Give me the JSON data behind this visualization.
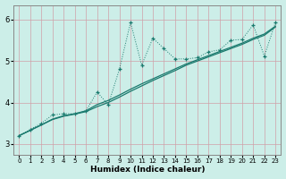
{
  "xlabel": "Humidex (Indice chaleur)",
  "background_color": "#cceee8",
  "line_color": "#1a7a6e",
  "xlim": [
    -0.5,
    23.5
  ],
  "ylim": [
    2.75,
    6.35
  ],
  "yticks": [
    3,
    4,
    5,
    6
  ],
  "xticks": [
    0,
    1,
    2,
    3,
    4,
    5,
    6,
    7,
    8,
    9,
    10,
    11,
    12,
    13,
    14,
    15,
    16,
    17,
    18,
    19,
    20,
    21,
    22,
    23
  ],
  "series_zigzag_x": [
    0,
    1,
    2,
    3,
    4,
    5,
    6,
    7,
    8,
    9,
    10,
    11,
    12,
    13,
    14,
    15,
    16,
    17,
    18,
    19,
    20,
    21,
    22,
    23
  ],
  "series_zigzag_y": [
    3.2,
    3.35,
    3.5,
    3.7,
    3.73,
    3.73,
    3.8,
    4.25,
    3.95,
    4.8,
    5.93,
    4.9,
    5.55,
    5.3,
    5.05,
    5.05,
    5.08,
    5.22,
    5.27,
    5.5,
    5.52,
    5.87,
    5.12,
    5.93
  ],
  "series_trend1_x": [
    0,
    1,
    2,
    3,
    4,
    5,
    6,
    7,
    8,
    9,
    10,
    11,
    12,
    13,
    14,
    15,
    16,
    17,
    18,
    19,
    20,
    21,
    22,
    23
  ],
  "series_trend1_y": [
    3.2,
    3.33,
    3.46,
    3.59,
    3.67,
    3.72,
    3.78,
    3.9,
    4.0,
    4.13,
    4.27,
    4.4,
    4.53,
    4.65,
    4.77,
    4.9,
    5.0,
    5.1,
    5.2,
    5.3,
    5.4,
    5.52,
    5.62,
    5.82
  ],
  "series_trend2_x": [
    0,
    1,
    2,
    3,
    4,
    5,
    6,
    7,
    8,
    9,
    10,
    11,
    12,
    13,
    14,
    15,
    16,
    17,
    18,
    19,
    20,
    21,
    22,
    23
  ],
  "series_trend2_y": [
    3.2,
    3.33,
    3.46,
    3.6,
    3.68,
    3.73,
    3.8,
    3.95,
    4.05,
    4.18,
    4.32,
    4.45,
    4.57,
    4.69,
    4.81,
    4.93,
    5.03,
    5.13,
    5.23,
    5.33,
    5.43,
    5.55,
    5.65,
    5.84
  ]
}
